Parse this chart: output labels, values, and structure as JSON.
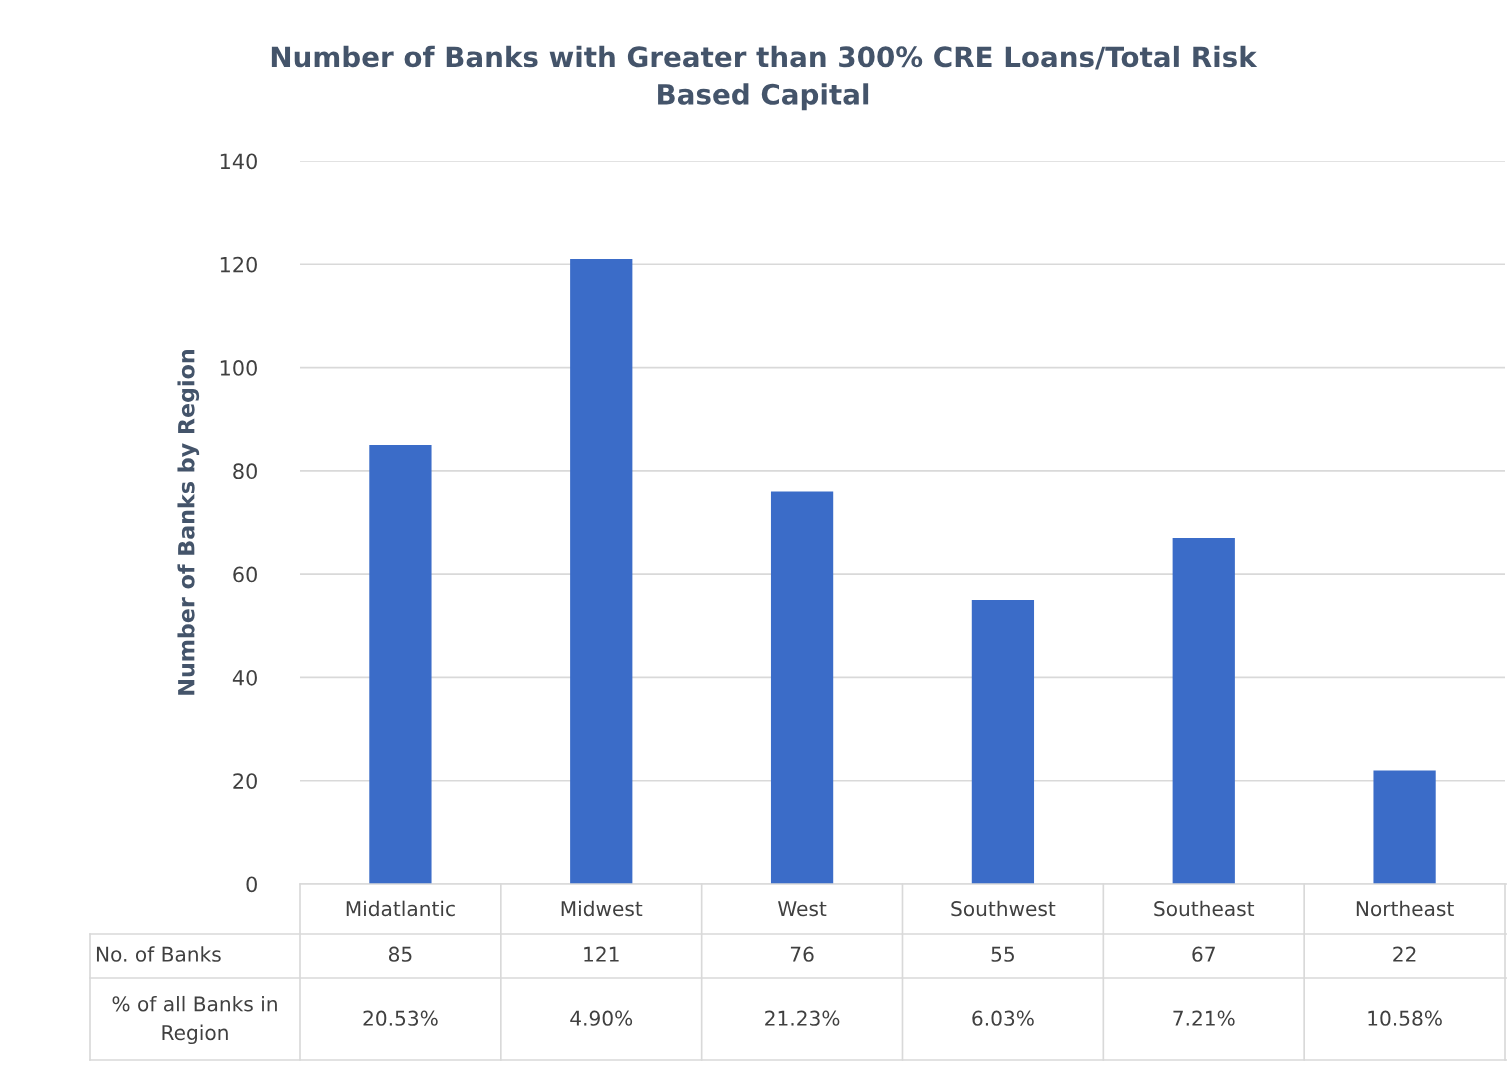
{
  "chart_data": {
    "type": "bar",
    "title": "Number of Banks with Greater than 300% CRE Loans/Total Risk\nBased Capital",
    "ylabel": "Number of Banks by Region",
    "categories": [
      "Midatlantic",
      "Midwest",
      "West",
      "Southwest",
      "Southeast",
      "Northeast"
    ],
    "series": [
      {
        "name": "No. of Banks",
        "color": "#3b6cc8",
        "values": [
          85,
          121,
          76,
          55,
          67,
          22
        ]
      }
    ],
    "data_labels": true,
    "annotations": [
      "% of all Banks in\nRegion",
      "20.53%",
      "4.90%",
      "21.23%",
      "6.03%",
      "7.21%",
      "10.58%"
    ],
    "ylim": [
      0,
      140
    ],
    "yticks": [
      0,
      20,
      40,
      60,
      80,
      100,
      120,
      140
    ],
    "grid": "y"
  }
}
